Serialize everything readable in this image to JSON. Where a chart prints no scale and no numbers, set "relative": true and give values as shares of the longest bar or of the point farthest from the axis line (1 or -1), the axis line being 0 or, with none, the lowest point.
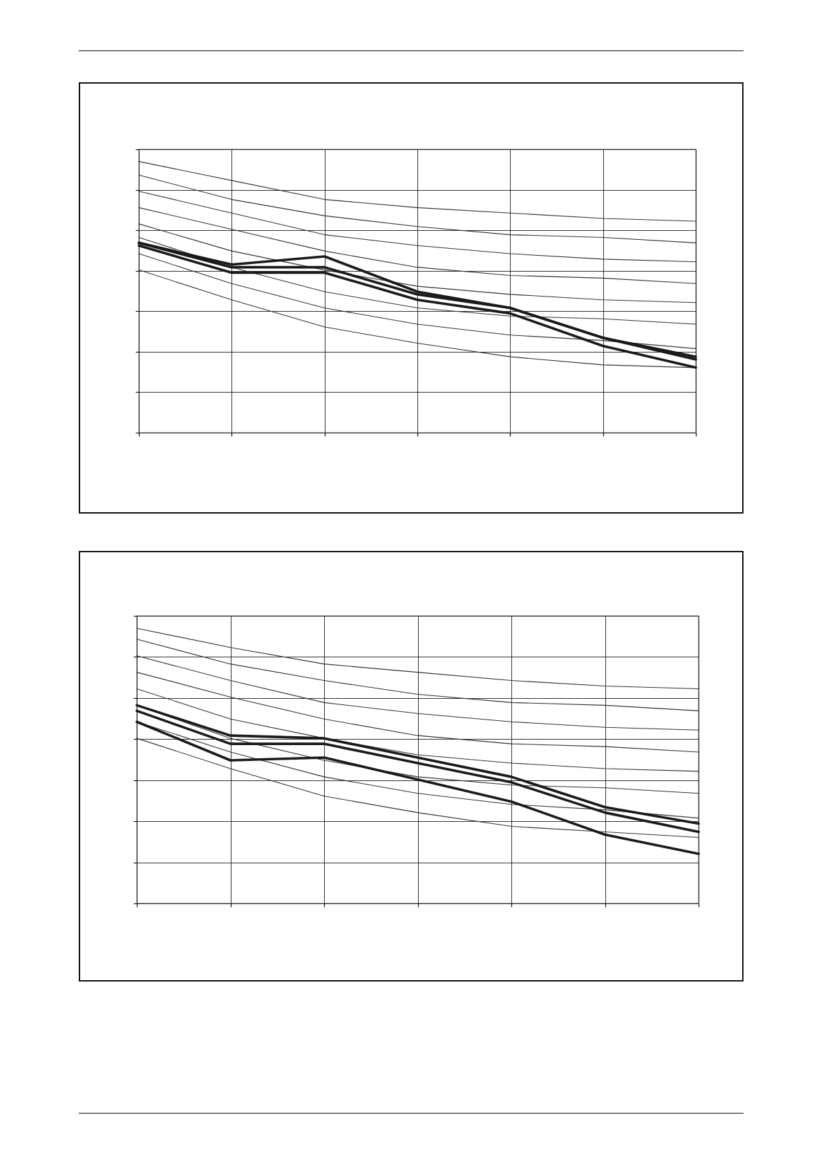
{
  "chart_data": [
    {
      "type": "line",
      "relative": true,
      "grid": true,
      "categories": [
        null,
        null,
        null,
        null,
        null,
        null,
        null
      ],
      "series": [
        {
          "color": "#333333",
          "values": [
            1.0,
            0.93,
            0.86,
            0.83,
            0.81,
            0.79,
            0.78
          ]
        },
        {
          "color": "#333333",
          "values": [
            0.95,
            0.86,
            0.8,
            0.76,
            0.73,
            0.72,
            0.7
          ]
        },
        {
          "color": "#333333",
          "values": [
            0.89,
            0.81,
            0.73,
            0.69,
            0.66,
            0.64,
            0.63
          ]
        },
        {
          "color": "#333333",
          "values": [
            0.83,
            0.75,
            0.67,
            0.61,
            0.58,
            0.57,
            0.55
          ]
        },
        {
          "color": "#333333",
          "values": [
            0.77,
            0.67,
            0.6,
            0.54,
            0.51,
            0.49,
            0.48
          ]
        },
        {
          "color": "#333333",
          "values": [
            0.72,
            0.61,
            0.52,
            0.46,
            0.43,
            0.42,
            0.4
          ]
        },
        {
          "color": "#333333",
          "values": [
            0.66,
            0.55,
            0.46,
            0.4,
            0.36,
            0.34,
            0.31
          ]
        },
        {
          "color": "#333333",
          "values": [
            0.6,
            0.49,
            0.39,
            0.33,
            0.28,
            0.25,
            0.24
          ]
        },
        {
          "color": "#1a1a1a",
          "values": [
            0.7,
            0.62,
            0.65,
            0.52,
            0.46,
            0.35,
            0.28
          ]
        },
        {
          "color": "#1a1a1a",
          "values": [
            0.7,
            0.61,
            0.61,
            0.51,
            0.46,
            0.35,
            0.27
          ]
        },
        {
          "color": "#1a1a1a",
          "values": [
            0.69,
            0.59,
            0.59,
            0.49,
            0.44,
            0.32,
            0.24
          ]
        }
      ]
    },
    {
      "type": "line",
      "relative": true,
      "grid": true,
      "categories": [
        null,
        null,
        null,
        null,
        null,
        null,
        null
      ],
      "series": [
        {
          "color": "#333333",
          "values": [
            1.0,
            0.93,
            0.87,
            0.84,
            0.81,
            0.79,
            0.78
          ]
        },
        {
          "color": "#333333",
          "values": [
            0.96,
            0.87,
            0.81,
            0.76,
            0.73,
            0.72,
            0.7
          ]
        },
        {
          "color": "#333333",
          "values": [
            0.9,
            0.81,
            0.73,
            0.69,
            0.66,
            0.64,
            0.63
          ]
        },
        {
          "color": "#333333",
          "values": [
            0.84,
            0.75,
            0.67,
            0.61,
            0.58,
            0.57,
            0.55
          ]
        },
        {
          "color": "#333333",
          "values": [
            0.78,
            0.67,
            0.6,
            0.54,
            0.51,
            0.49,
            0.48
          ]
        },
        {
          "color": "#333333",
          "values": [
            0.72,
            0.6,
            0.52,
            0.46,
            0.43,
            0.42,
            0.4
          ]
        },
        {
          "color": "#333333",
          "values": [
            0.66,
            0.55,
            0.46,
            0.4,
            0.36,
            0.34,
            0.31
          ]
        },
        {
          "color": "#333333",
          "values": [
            0.6,
            0.49,
            0.39,
            0.33,
            0.28,
            0.26,
            0.24
          ]
        },
        {
          "color": "#1a1a1a",
          "values": [
            0.72,
            0.61,
            0.6,
            0.53,
            0.46,
            0.35,
            0.29
          ]
        },
        {
          "color": "#1a1a1a",
          "values": [
            0.7,
            0.58,
            0.58,
            0.51,
            0.44,
            0.33,
            0.26
          ]
        },
        {
          "color": "#1a1a1a",
          "values": [
            0.66,
            0.52,
            0.53,
            0.45,
            0.37,
            0.25,
            0.18
          ]
        }
      ]
    }
  ]
}
